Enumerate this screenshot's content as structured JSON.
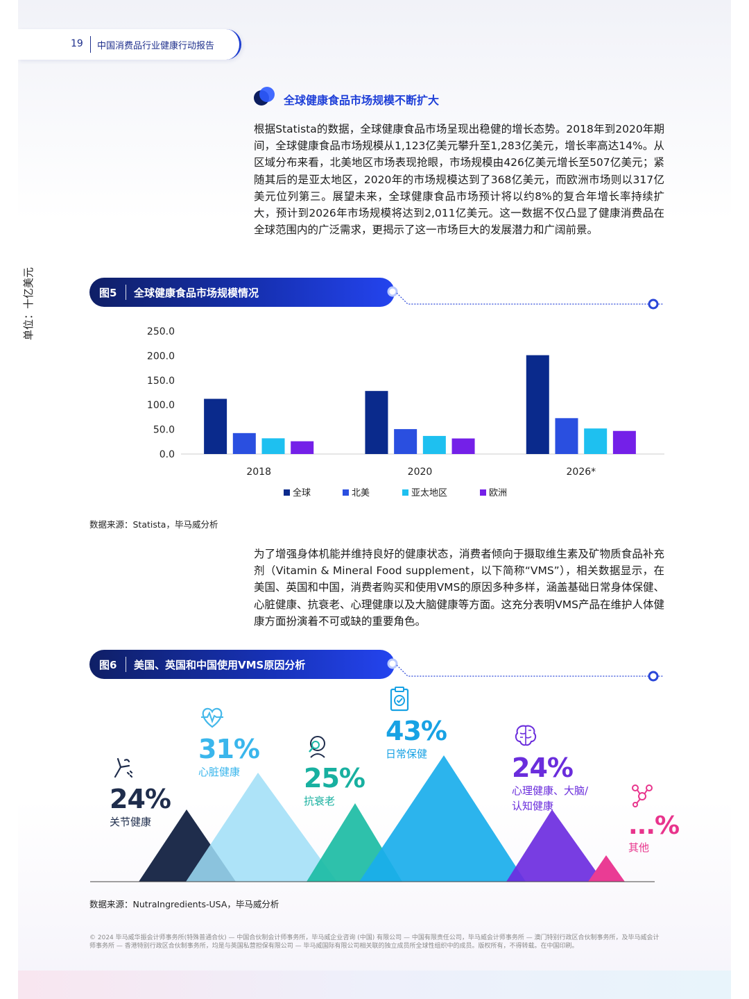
{
  "header": {
    "page_number": "19",
    "report_title": "中国消费品行业健康行动报告"
  },
  "section": {
    "heading": "全球健康食品市场规模不断扩大",
    "paragraph1": "根据Statista的数据，全球健康食品市场呈现出稳健的增长态势。2018年到2020年期间，全球健康食品市场规模从1,123亿美元攀升至1,283亿美元，增长率高达14%。从区域分布来看，北美地区市场表现抢眼，市场规模由426亿美元增长至507亿美元；紧随其后的是亚太地区，2020年的市场规模达到了368亿美元，而欧洲市场则以317亿美元位列第三。展望未来，全球健康食品市场预计将以约8%的复合年增长率持续扩大，预计到2026年市场规模将达到2,011亿美元。这一数据不仅凸显了健康消费品在全球范围内的广泛需求，更揭示了这一市场巨大的发展潜力和广阔前景。",
    "paragraph2": "为了增强身体机能并维持良好的健康状态，消费者倾向于摄取维生素及矿物质食品补充剂（Vitamin & Mineral Food supplement，以下简称“VMS”），相关数据显示，在美国、英国和中国，消费者购买和使用VMS的原因多种多样，涵盖基础日常身体保健、心脏健康、抗衰老、心理健康以及大脑健康等方面。这充分表明VMS产品在维护人体健康方面扮演着不可或缺的重要角色。"
  },
  "figure5": {
    "label": "图5",
    "title": "全球健康食品市场规模情况",
    "source": "数据来源：Statista，毕马威分析"
  },
  "chart_data": {
    "type": "bar",
    "title": "",
    "ylabel": "单位：十亿美元",
    "xlabel": "",
    "ylim": [
      0,
      250
    ],
    "yticks": [
      "0.0",
      "50.0",
      "100.0",
      "150.0",
      "200.0",
      "250.0"
    ],
    "categories": [
      "2018",
      "2020",
      "2026*"
    ],
    "series": [
      {
        "name": "全球",
        "color": "#0a2a8c",
        "values": [
          112.3,
          128.3,
          201.1
        ]
      },
      {
        "name": "北美",
        "color": "#2a4fe0",
        "values": [
          42.6,
          50.7,
          73
        ]
      },
      {
        "name": "亚太地区",
        "color": "#1ec0f0",
        "values": [
          32,
          36.8,
          52
        ]
      },
      {
        "name": "欧洲",
        "color": "#7420e8",
        "values": [
          26,
          31.7,
          47
        ]
      }
    ],
    "legend_position": "bottom",
    "grid": false
  },
  "figure6": {
    "label": "图6",
    "title": "美国、英国和中国使用VMS原因分析",
    "source": "数据来源：NutraIngredients-USA，毕马威分析",
    "items": [
      {
        "pct": "24%",
        "label": "关节健康",
        "icon": "joint-icon",
        "color": "#1f2d4c",
        "value": 24
      },
      {
        "pct": "31%",
        "label": "心脏健康",
        "icon": "heart-pulse-icon",
        "color": "#63c9f0",
        "value": 31
      },
      {
        "pct": "25%",
        "label": "抗衰老",
        "icon": "anti-aging-icon",
        "color": "#1cb7a8",
        "value": 25
      },
      {
        "pct": "43%",
        "label": "日常保健",
        "icon": "clipboard-check-icon",
        "color": "#16a6e6",
        "value": 43
      },
      {
        "pct": "24%",
        "label": "心理健康、大脑/认知健康",
        "label_line1": "心理健康、大脑/",
        "label_line2": "认知健康",
        "icon": "brain-icon",
        "color": "#6a2ddc",
        "value": 24
      },
      {
        "pct": "...%",
        "label": "其他",
        "icon": "molecule-icon",
        "color": "#e8348c"
      }
    ]
  },
  "footer": {
    "text": "© 2024 毕马威华振会计师事务所(特殊普通合伙) — 中国合伙制会计师事务所，毕马威企业咨询 (中国) 有限公司 — 中国有限责任公司，毕马威会计师事务所 — 澳门特别行政区合伙制事务所，及毕马威会计师事务所 — 香港特别行政区合伙制事务所，均是与英国私营担保有限公司 — 毕马威国际有限公司相关联的独立成员所全球性组织中的成员。版权所有，不得转载。在中国印刷。"
  }
}
